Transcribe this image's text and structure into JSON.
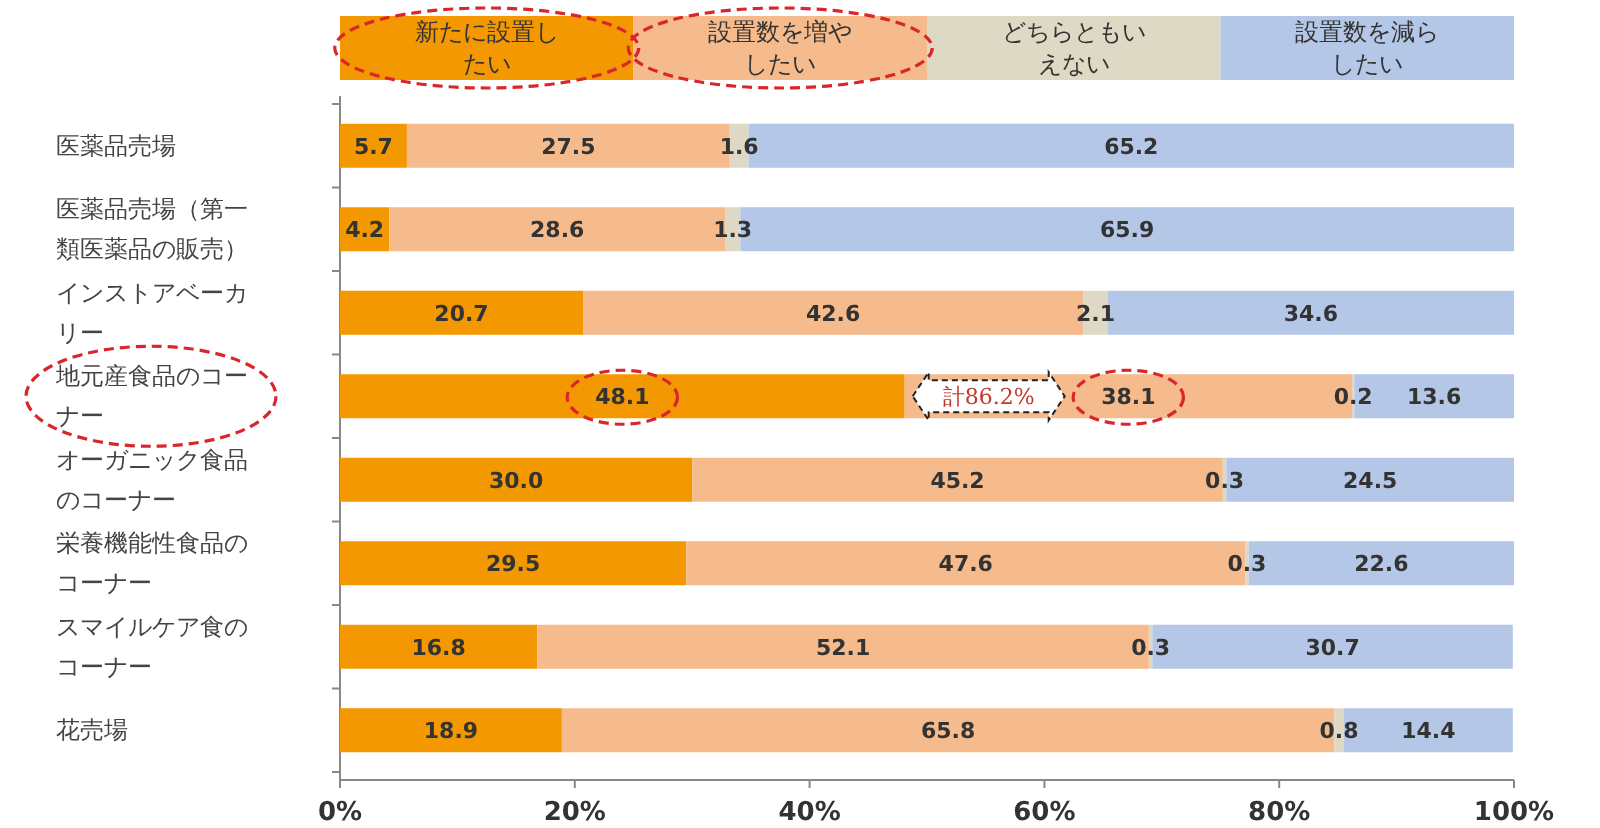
{
  "chart_data": {
    "type": "bar",
    "orientation": "horizontal",
    "stacked": true,
    "legend": "top",
    "categories": [
      "医薬品売場",
      "医薬品売場（第一類医薬品の販売）",
      "インストアベーカリー",
      "地元産食品のコーナー",
      "オーガニック食品のコーナー",
      "栄養機能性食品のコーナー",
      "スマイルケア食のコーナー",
      "花売場"
    ],
    "series": [
      {
        "name": "新たに設置したい",
        "color": "#f39800",
        "values": [
          5.7,
          4.2,
          20.7,
          48.1,
          30.0,
          29.5,
          16.8,
          18.9
        ],
        "value_labels": [
          "5.7",
          "4.2",
          "20.7",
          "48.1",
          "30.0",
          "29.5",
          "16.8",
          "18.9"
        ]
      },
      {
        "name": "設置数を増やしたい",
        "color": "#f5bb8c",
        "values": [
          27.5,
          28.6,
          42.6,
          38.1,
          45.2,
          47.6,
          52.1,
          65.8
        ],
        "value_labels": [
          "27.5",
          "28.6",
          "42.6",
          "38.1",
          "45.2",
          "47.6",
          "52.1",
          "65.8"
        ]
      },
      {
        "name": "どちらともいえない",
        "color": "#ddd9c4",
        "values": [
          1.6,
          1.3,
          2.1,
          0.2,
          0.3,
          0.3,
          0.3,
          0.8
        ],
        "value_labels": [
          "1.6",
          "1.3",
          "2.1",
          "0.2",
          "0.3",
          "0.3",
          "0.3",
          "0.8"
        ]
      },
      {
        "name": "設置数を減らしたい",
        "color": "#b4c7e7",
        "values": [
          65.2,
          65.9,
          34.6,
          13.6,
          24.5,
          22.6,
          30.7,
          14.4
        ],
        "value_labels": [
          "65.2",
          "65.9",
          "34.6",
          "13.6",
          "24.5",
          "22.6",
          "30.7",
          "14.4"
        ]
      }
    ],
    "xlim": [
      0,
      100
    ],
    "xticks": [
      {
        "value": 0,
        "label": "0%"
      },
      {
        "value": 20,
        "label": "20%"
      },
      {
        "value": 40,
        "label": "40%"
      },
      {
        "value": 60,
        "label": "60%"
      },
      {
        "value": 80,
        "label": "80%"
      },
      {
        "value": 100,
        "label": "100%"
      }
    ],
    "annotations": [
      "計86.2%"
    ]
  }
}
